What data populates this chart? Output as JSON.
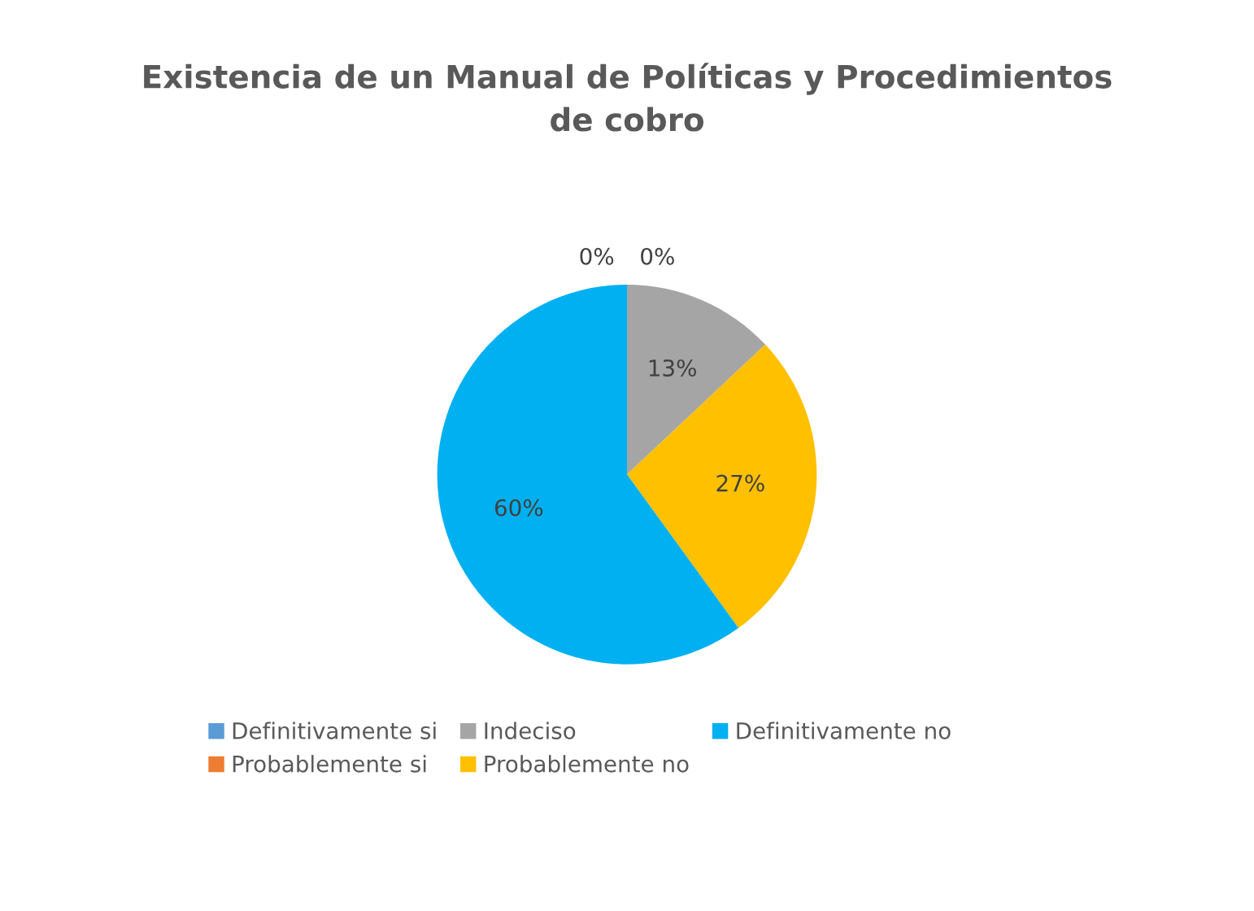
{
  "chart_data": {
    "type": "pie",
    "title": "Existencia de un Manual de Políticas y Procedimientos\nde cobro",
    "categories": [
      "Definitivamente si",
      "Probablemente si",
      "Indeciso",
      "Probablemente no",
      "Definitivamente no"
    ],
    "values": [
      0,
      0,
      13,
      27,
      60
    ],
    "colors": [
      "#5b9bd5",
      "#ed7d31",
      "#a5a5a5",
      "#ffc000",
      "#00b0f0"
    ],
    "value_labels": [
      "0%",
      "0%",
      "13%",
      "27%",
      "60%"
    ],
    "legend": "bottom"
  }
}
